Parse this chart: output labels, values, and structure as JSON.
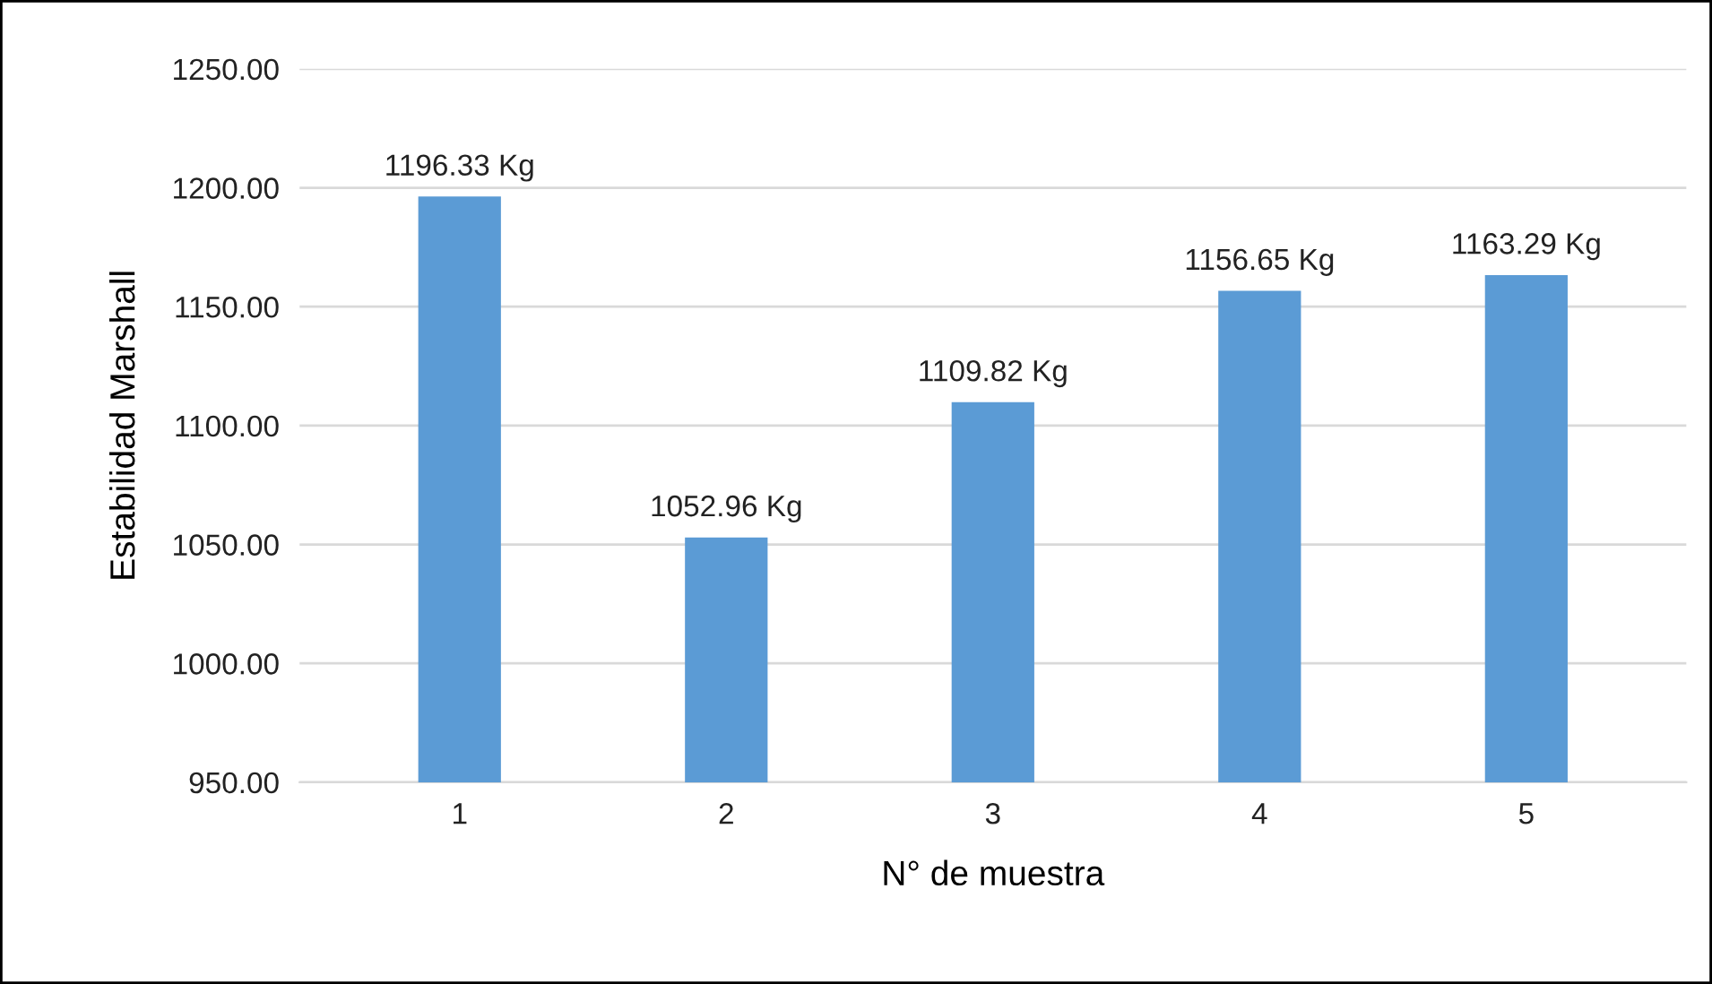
{
  "chart_data": {
    "type": "bar",
    "xlabel": "N° de muestra",
    "ylabel": "Estabilidad Marshall",
    "categories": [
      "1",
      "2",
      "3",
      "4",
      "5"
    ],
    "values": [
      1196.33,
      1052.96,
      1109.82,
      1156.65,
      1163.29
    ],
    "value_labels": [
      "1196.33 Kg",
      "1052.96 Kg",
      "1109.82 Kg",
      "1156.65 Kg",
      "1163.29 Kg"
    ],
    "color": "#5b9bd5",
    "ylim": [
      950,
      1250
    ],
    "yticks": [
      {
        "value": 950,
        "label": "950.00"
      },
      {
        "value": 1000,
        "label": "1000.00"
      },
      {
        "value": 1050,
        "label": "1050.00"
      },
      {
        "value": 1100,
        "label": "1100.00"
      },
      {
        "value": 1150,
        "label": "1150.00"
      },
      {
        "value": 1200,
        "label": "1200.00"
      },
      {
        "value": 1250,
        "label": "1250.00"
      }
    ],
    "grid": "y",
    "legend": false
  }
}
